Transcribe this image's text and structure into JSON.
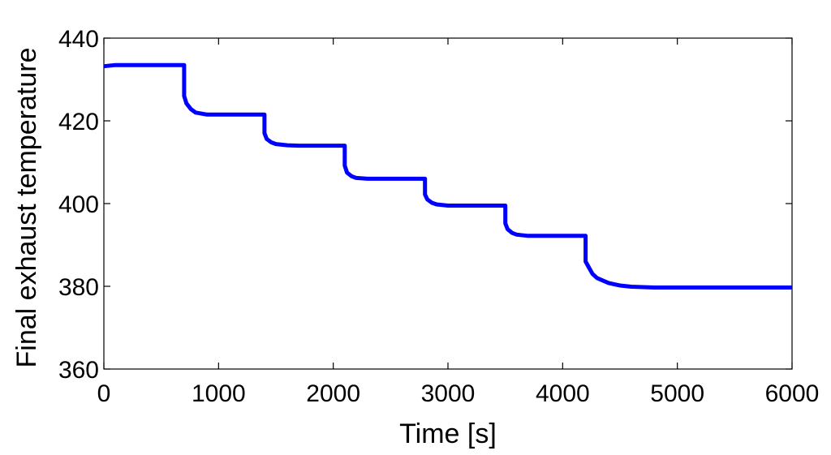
{
  "chart_data": {
    "type": "line",
    "title": "",
    "xlabel": "Time [s]",
    "ylabel": "Final exhaust temperature",
    "xlim": [
      0,
      6000
    ],
    "ylim": [
      360,
      440
    ],
    "x_ticks": [
      0,
      1000,
      2000,
      3000,
      4000,
      5000,
      6000
    ],
    "y_ticks": [
      360,
      380,
      400,
      420,
      440
    ],
    "x_tick_labels": [
      "0",
      "1000",
      "2000",
      "3000",
      "4000",
      "5000",
      "6000"
    ],
    "y_tick_labels": [
      "360",
      "380",
      "400",
      "420",
      "440"
    ],
    "grid": false,
    "legend": "none",
    "series": [
      {
        "color": "#0000ff",
        "x": [
          0,
          100,
          700,
          700,
          720,
          760,
          800,
          900,
          1000,
          1400,
          1400,
          1420,
          1460,
          1500,
          1600,
          1700,
          2100,
          2100,
          2120,
          2160,
          2200,
          2300,
          2400,
          2800,
          2800,
          2820,
          2860,
          2900,
          3000,
          3100,
          3500,
          3500,
          3520,
          3560,
          3600,
          3700,
          3800,
          4200,
          4200,
          4220,
          4260,
          4300,
          4400,
          4500,
          4600,
          4700,
          4800,
          6000
        ],
        "y": [
          433.2,
          433.5,
          433.5,
          426,
          424.2,
          422.8,
          422,
          421.5,
          421.5,
          421.5,
          417,
          415.6,
          414.8,
          414.4,
          414.1,
          414,
          414,
          409.2,
          407.5,
          406.6,
          406.2,
          406,
          406,
          406,
          402.2,
          401,
          400.2,
          399.8,
          399.5,
          399.5,
          399.5,
          395.2,
          393.8,
          392.9,
          392.5,
          392.2,
          392.2,
          392.2,
          386,
          385,
          383,
          382,
          380.8,
          380.2,
          379.9,
          379.8,
          379.7,
          379.7
        ]
      }
    ]
  }
}
